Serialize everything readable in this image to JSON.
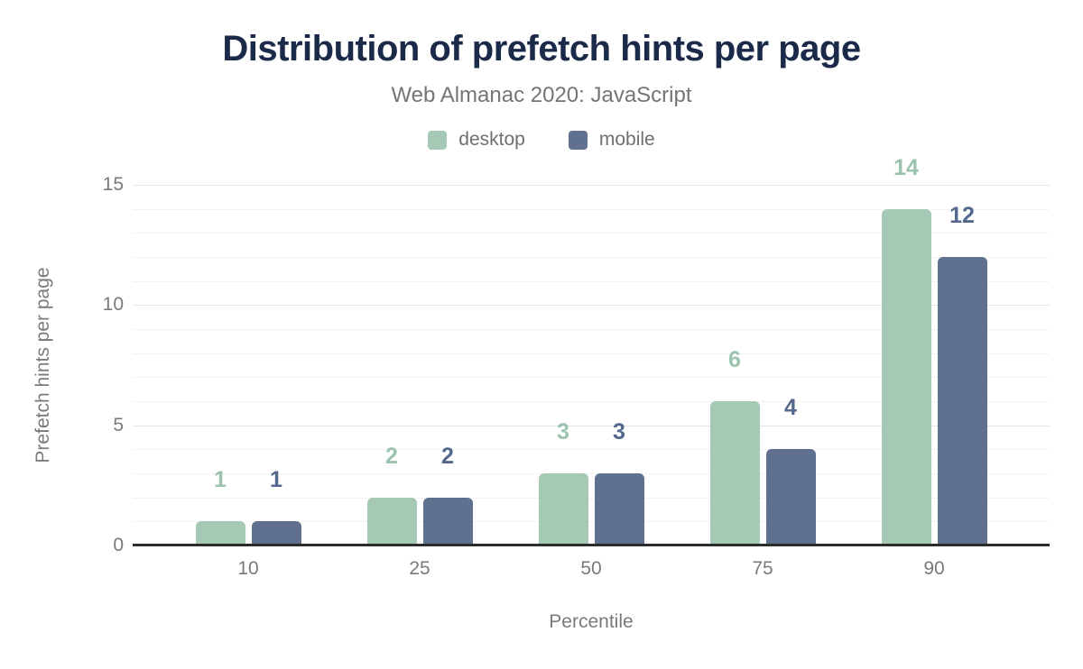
{
  "title": "Distribution of prefetch hints per page",
  "subtitle": "Web Almanac 2020: JavaScript",
  "axes": {
    "x_title": "Percentile",
    "y_title": "Prefetch hints per page"
  },
  "colors": {
    "title_text": "#1b2a49",
    "subtitle_text": "#757575",
    "axis_text": "#7a7a7a",
    "axis_line": "#2d2d2d",
    "grid_major": "#e5e5e5",
    "grid_minor": "#f3f3f3",
    "desktop_bar": "#a6c9b5",
    "mobile_bar": "#5f718f",
    "desktop_label": "#9cc3ae",
    "mobile_label": "#54688d"
  },
  "legend": [
    {
      "label": "desktop",
      "color": "#a6c9b5"
    },
    {
      "label": "mobile",
      "color": "#5f718f"
    }
  ],
  "chart_data": {
    "type": "bar",
    "title": "Distribution of prefetch hints per page",
    "subtitle": "Web Almanac 2020: JavaScript",
    "categories": [
      "10",
      "25",
      "50",
      "75",
      "90"
    ],
    "series": [
      {
        "name": "desktop",
        "color": "#a6c9b5",
        "label_color": "#9cc3ae",
        "values": [
          1,
          2,
          3,
          6,
          14
        ]
      },
      {
        "name": "mobile",
        "color": "#5f718f",
        "label_color": "#54688d",
        "values": [
          1,
          2,
          3,
          4,
          12
        ]
      }
    ],
    "xlabel": "Percentile",
    "ylabel": "Prefetch hints per page",
    "ylim": [
      0,
      15
    ],
    "yticks": [
      0,
      5,
      10,
      15
    ],
    "grid": "horizontal; minor lines every 1 unit, major lines every 5 units",
    "legend_position": "top",
    "data_labels": true
  }
}
